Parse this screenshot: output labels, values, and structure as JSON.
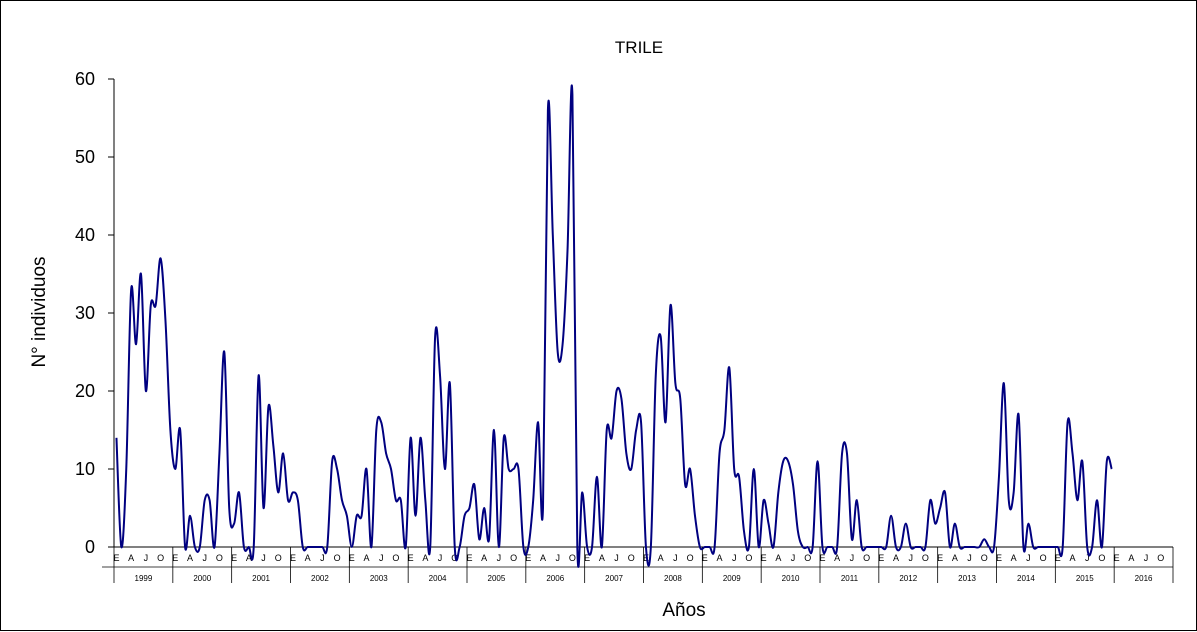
{
  "chart_data": {
    "type": "line",
    "title": "TRILE",
    "xlabel": "Años",
    "ylabel": "N° individuos",
    "ylim": [
      0,
      60
    ],
    "y_ticks": [
      "0",
      "10",
      "20",
      "30",
      "40",
      "50",
      "60"
    ],
    "month_labels": [
      "E",
      "A",
      "J",
      "O"
    ],
    "years": [
      "1999",
      "2000",
      "2001",
      "2002",
      "2003",
      "2004",
      "2005",
      "2006",
      "2007",
      "2008",
      "2009",
      "2010",
      "2011",
      "2012",
      "2013",
      "2014",
      "2015",
      "2016"
    ],
    "line_color": "#000080",
    "grid": false,
    "legend": "none",
    "series": [
      {
        "values": [
          14,
          0,
          10,
          33,
          26,
          35,
          20,
          31,
          31,
          37,
          29,
          15,
          10,
          15,
          0,
          4,
          0,
          0,
          6,
          6,
          0,
          12,
          25,
          5,
          3,
          7,
          0,
          0,
          0,
          22,
          5,
          18,
          13,
          7,
          12,
          6,
          7,
          6,
          0,
          0,
          0,
          0,
          0,
          0,
          11,
          10,
          6,
          4,
          0,
          4,
          4,
          10,
          0,
          15,
          16,
          12,
          10,
          6,
          6,
          0,
          14,
          4,
          14,
          6,
          0,
          27,
          22,
          10,
          21,
          0,
          0,
          4,
          5,
          8,
          1,
          5,
          1,
          15,
          0,
          14,
          10,
          10,
          10,
          0,
          0,
          6,
          16,
          5,
          56,
          40,
          25,
          26,
          38,
          58,
          0,
          7,
          0,
          0,
          9,
          0,
          15,
          14,
          20,
          19,
          12,
          10,
          15,
          16,
          0,
          0,
          22,
          27,
          16,
          31,
          21,
          19,
          8,
          10,
          4,
          0,
          0,
          0,
          0,
          12,
          15,
          23,
          10,
          9,
          2,
          0,
          10,
          0,
          6,
          3,
          0,
          7,
          11,
          11,
          8,
          2,
          0,
          0,
          0,
          11,
          0,
          0,
          0,
          0,
          12,
          12,
          1,
          6,
          0,
          0,
          0,
          0,
          0,
          0,
          4,
          0,
          0,
          3,
          0,
          0,
          0,
          0,
          6,
          3,
          5,
          7,
          0,
          3,
          0,
          0,
          0,
          0,
          0,
          1,
          0,
          0,
          9,
          21,
          6,
          7,
          17,
          0,
          3,
          0,
          0,
          0,
          0,
          0,
          0,
          0,
          16,
          12,
          6,
          11,
          0,
          0,
          6,
          0,
          11,
          10
        ]
      }
    ]
  }
}
